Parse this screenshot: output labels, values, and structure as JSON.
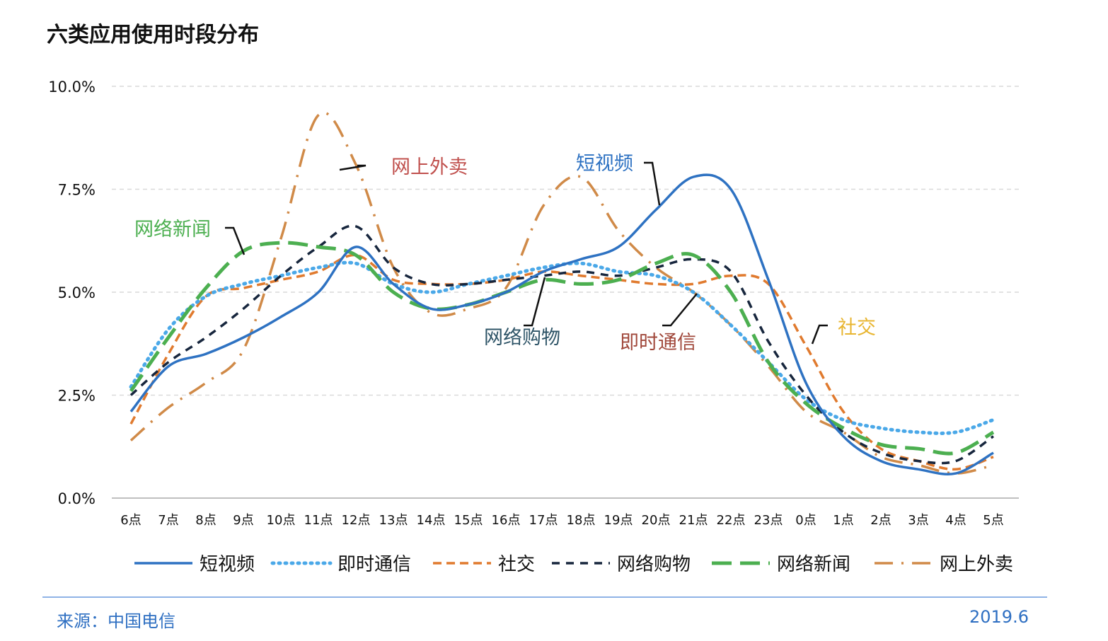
{
  "chart_data": {
    "type": "line",
    "title": "六类应用使用时段分布",
    "categories": [
      "6点",
      "7点",
      "8点",
      "9点",
      "10点",
      "11点",
      "12点",
      "13点",
      "14点",
      "15点",
      "16点",
      "17点",
      "18点",
      "19点",
      "20点",
      "21点",
      "22点",
      "23点",
      "0点",
      "1点",
      "2点",
      "3点",
      "4点",
      "5点"
    ],
    "y_ticks": [
      "0.0%",
      "2.5%",
      "5.0%",
      "7.5%",
      "10.0%"
    ],
    "ylim": [
      0,
      10
    ],
    "grid": true,
    "legend_position": "bottom",
    "series": [
      {
        "name": "短视频",
        "color": "#2e72c2",
        "style": "solid",
        "values": [
          2.1,
          3.2,
          3.5,
          3.9,
          4.4,
          5.0,
          6.1,
          5.2,
          4.6,
          4.7,
          5.0,
          5.5,
          5.8,
          6.1,
          7.0,
          7.8,
          7.5,
          5.3,
          2.8,
          1.5,
          0.9,
          0.7,
          0.6,
          1.1
        ]
      },
      {
        "name": "即时通信",
        "color": "#4aa8e8",
        "style": "dotted",
        "values": [
          2.7,
          4.1,
          4.9,
          5.2,
          5.4,
          5.6,
          5.7,
          5.2,
          5.0,
          5.2,
          5.4,
          5.6,
          5.7,
          5.5,
          5.4,
          5.0,
          4.2,
          3.3,
          2.4,
          1.9,
          1.7,
          1.6,
          1.6,
          1.9
        ]
      },
      {
        "name": "社交",
        "color": "#e07a2e",
        "style": "dashed",
        "values": [
          1.8,
          3.5,
          4.9,
          5.1,
          5.3,
          5.5,
          5.9,
          5.3,
          5.2,
          5.2,
          5.3,
          5.5,
          5.4,
          5.3,
          5.2,
          5.2,
          5.4,
          5.2,
          3.7,
          2.1,
          1.2,
          0.9,
          0.7,
          1.0
        ]
      },
      {
        "name": "网络购物",
        "color": "#17263d",
        "style": "dash-short",
        "values": [
          2.5,
          3.3,
          3.9,
          4.6,
          5.4,
          6.1,
          6.6,
          5.6,
          5.2,
          5.2,
          5.3,
          5.4,
          5.5,
          5.4,
          5.6,
          5.8,
          5.5,
          3.8,
          2.5,
          1.6,
          1.1,
          0.9,
          0.9,
          1.5
        ]
      },
      {
        "name": "网络新闻",
        "color": "#4caf50",
        "style": "dash-long",
        "values": [
          2.6,
          3.9,
          5.1,
          6.0,
          6.2,
          6.1,
          5.9,
          5.0,
          4.6,
          4.7,
          5.0,
          5.3,
          5.2,
          5.3,
          5.7,
          5.9,
          5.0,
          3.3,
          2.3,
          1.7,
          1.3,
          1.2,
          1.1,
          1.6
        ]
      },
      {
        "name": "网上外卖",
        "color": "#d08a48",
        "style": "dashdot",
        "values": [
          1.4,
          2.2,
          2.8,
          3.6,
          6.3,
          9.3,
          8.1,
          5.6,
          4.5,
          4.6,
          5.1,
          7.1,
          7.8,
          6.5,
          5.6,
          5.0,
          4.2,
          3.2,
          2.1,
          1.6,
          1.0,
          0.8,
          0.6,
          0.8
        ]
      }
    ],
    "annotations": [
      {
        "text": "网上外卖",
        "color": "#c0504d"
      },
      {
        "text": "短视频",
        "color": "#2e72c2"
      },
      {
        "text": "网络新闻",
        "color": "#4caf50"
      },
      {
        "text": "网络购物",
        "color": "#2e5467"
      },
      {
        "text": "即时通信",
        "color": "#a0473a"
      },
      {
        "text": "社交",
        "color": "#e8b530"
      }
    ]
  },
  "footer": {
    "source": "来源：中国电信",
    "date": "2019.6"
  }
}
